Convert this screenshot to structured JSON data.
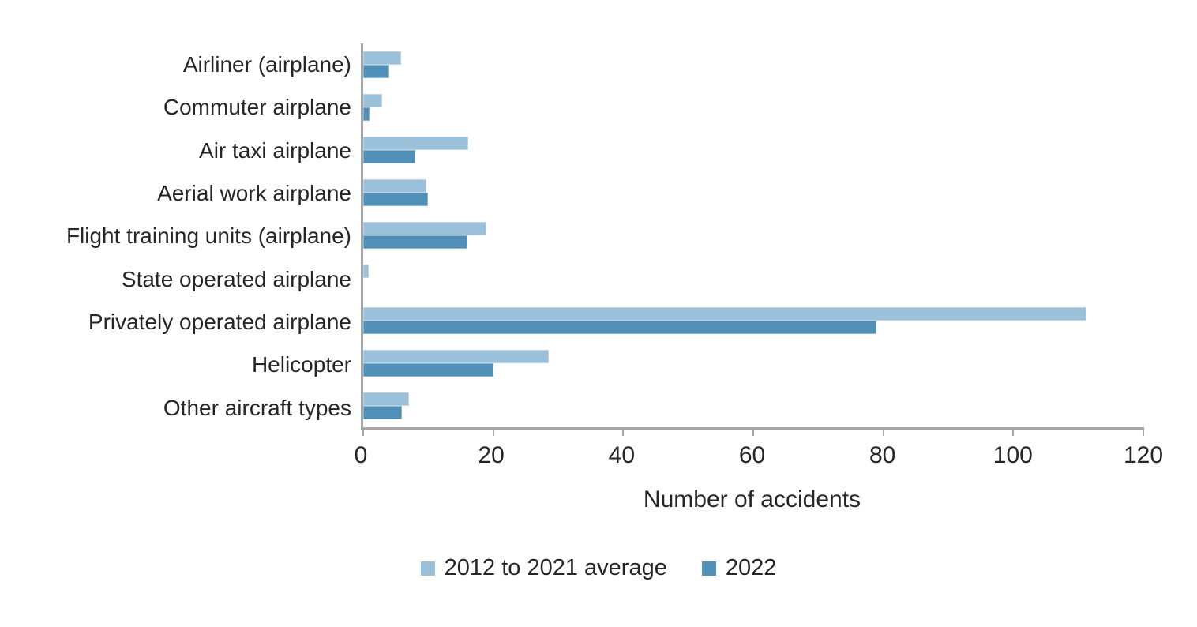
{
  "chart_data": {
    "type": "bar",
    "orientation": "horizontal",
    "title": "",
    "xlabel": "Number of accidents",
    "xlim": [
      0,
      120
    ],
    "xticks": [
      0,
      20,
      40,
      60,
      80,
      100,
      120
    ],
    "grid": false,
    "legend_position": "bottom-center",
    "categories": [
      "Airliner (airplane)",
      "Commuter airplane",
      "Air taxi airplane",
      "Aerial work airplane",
      "Flight training units (airplane)",
      "State operated airplane",
      "Privately operated airplane",
      "Helicopter",
      "Other aircraft types"
    ],
    "series": [
      {
        "name": "2012 to 2021 average",
        "color": "#9ac0da",
        "values": [
          5.8,
          2.9,
          16.2,
          9.7,
          18.9,
          0.9,
          111.2,
          28.6,
          7.1
        ]
      },
      {
        "name": "2022",
        "color": "#508fb8",
        "values": [
          4,
          1,
          8,
          10,
          16,
          0,
          79,
          20,
          6
        ]
      }
    ]
  },
  "colors": {
    "background": "#ffffff",
    "axis_line": "#a6a6a6",
    "text": "#262626",
    "series_light": "#9ac0da",
    "series_dark": "#508fb8"
  }
}
